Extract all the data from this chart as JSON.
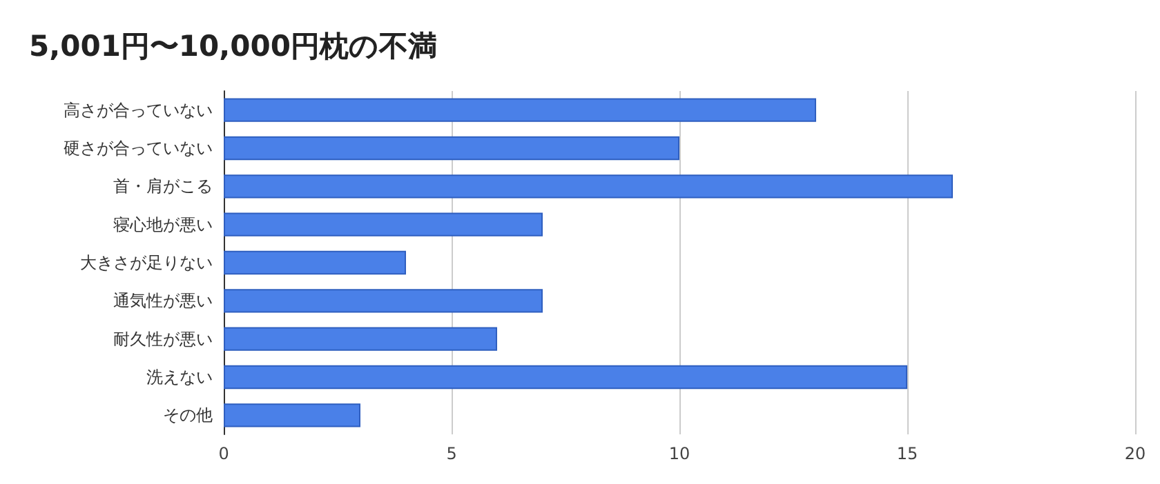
{
  "chart_data": {
    "type": "bar",
    "orientation": "horizontal",
    "title": "5,001円〜10,000円枕の不満",
    "categories": [
      "高さが合っていない",
      "硬さが合っていない",
      "首・肩がこる",
      "寝心地が悪い",
      "大きさが足りない",
      "通気性が悪い",
      "耐久性が悪い",
      "洗えない",
      "その他"
    ],
    "values": [
      13,
      10,
      16,
      7,
      4,
      7,
      6,
      15,
      3
    ],
    "color": "#4a80e8",
    "xlim": [
      0,
      20
    ],
    "xticks": [
      0,
      5,
      10,
      15,
      20
    ],
    "grid": "x"
  }
}
